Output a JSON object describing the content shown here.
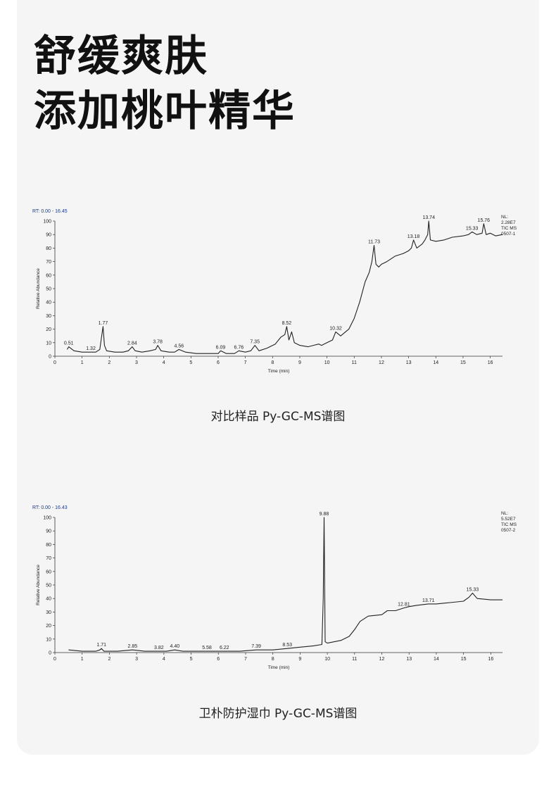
{
  "headline": {
    "line1": "舒缓爽肤",
    "line2": "添加桃叶精华"
  },
  "captions": {
    "chart1": "对比样品 Py-GC-MS谱图",
    "chart2": "卫朴防护湿巾 Py-GC-MS谱图"
  },
  "colors": {
    "trace": "#222222",
    "rt_label": "#1a3a8a",
    "background": "#f5f5f5"
  },
  "chart_data": [
    {
      "type": "line",
      "rt_label": "RT: 0.00 - 16.45",
      "xlabel": "Time (min)",
      "ylabel": "Relative Abundance",
      "xlim": [
        0,
        16.45
      ],
      "ylim": [
        0,
        100
      ],
      "xticks": [
        0,
        1,
        2,
        3,
        4,
        5,
        6,
        7,
        8,
        9,
        10,
        11,
        12,
        13,
        14,
        15,
        16
      ],
      "yticks": [
        0,
        10,
        20,
        30,
        40,
        50,
        60,
        70,
        80,
        90,
        100
      ],
      "info_lines": [
        "NL:",
        "2.28E7",
        "TIC  MS",
        "0507-1"
      ],
      "series": [
        {
          "x": [
            0.45,
            0.51,
            0.7,
            1.0,
            1.32,
            1.5,
            1.65,
            1.72,
            1.77,
            1.82,
            1.9,
            2.2,
            2.5,
            2.7,
            2.84,
            2.95,
            3.2,
            3.5,
            3.7,
            3.78,
            3.9,
            4.2,
            4.4,
            4.56,
            4.8,
            5.2,
            5.6,
            6.0,
            6.09,
            6.3,
            6.6,
            6.76,
            7.0,
            7.2,
            7.35,
            7.5,
            7.8,
            8.1,
            8.3,
            8.45,
            8.52,
            8.6,
            8.7,
            8.8,
            9.0,
            9.3,
            9.5,
            9.7,
            9.8,
            10.0,
            10.2,
            10.32,
            10.5,
            10.8,
            11.0,
            11.2,
            11.4,
            11.55,
            11.65,
            11.73,
            11.8,
            11.9,
            12.0,
            12.2,
            12.5,
            12.8,
            13.0,
            13.1,
            13.18,
            13.3,
            13.5,
            13.6,
            13.7,
            13.74,
            13.8,
            14.0,
            14.3,
            14.6,
            15.0,
            15.2,
            15.33,
            15.5,
            15.7,
            15.76,
            15.85,
            16.0,
            16.2,
            16.45
          ],
          "y": [
            5,
            7,
            4,
            3,
            3,
            3,
            5,
            15,
            22,
            8,
            4,
            3,
            3,
            4,
            7,
            4,
            3,
            4,
            5,
            8,
            4,
            3,
            3,
            5,
            3,
            2,
            2,
            2,
            4,
            2,
            2,
            4,
            3,
            4,
            8,
            4,
            6,
            9,
            14,
            16,
            22,
            12,
            18,
            10,
            8,
            7,
            8,
            9,
            8,
            10,
            12,
            18,
            15,
            20,
            28,
            40,
            55,
            62,
            70,
            82,
            68,
            66,
            68,
            70,
            74,
            76,
            78,
            80,
            86,
            80,
            83,
            86,
            90,
            100,
            86,
            85,
            86,
            88,
            89,
            90,
            92,
            90,
            91,
            98,
            90,
            91,
            89,
            90
          ]
        }
      ],
      "peak_labels": [
        {
          "x": 0.51,
          "y": 7,
          "text": "0.51"
        },
        {
          "x": 1.32,
          "y": 3,
          "text": "1.32"
        },
        {
          "x": 1.77,
          "y": 22,
          "text": "1.77"
        },
        {
          "x": 2.84,
          "y": 7,
          "text": "2.84"
        },
        {
          "x": 3.78,
          "y": 8,
          "text": "3.78"
        },
        {
          "x": 4.56,
          "y": 5,
          "text": "4.56"
        },
        {
          "x": 6.09,
          "y": 4,
          "text": "6.09"
        },
        {
          "x": 6.76,
          "y": 4,
          "text": "6.76"
        },
        {
          "x": 7.35,
          "y": 8,
          "text": "7.35"
        },
        {
          "x": 8.52,
          "y": 22,
          "text": "8.52"
        },
        {
          "x": 10.32,
          "y": 18,
          "text": "10.32"
        },
        {
          "x": 11.73,
          "y": 82,
          "text": "11.73"
        },
        {
          "x": 13.18,
          "y": 86,
          "text": "13.18"
        },
        {
          "x": 13.74,
          "y": 100,
          "text": "13.74"
        },
        {
          "x": 15.33,
          "y": 92,
          "text": "15.33"
        },
        {
          "x": 15.76,
          "y": 98,
          "text": "15.76"
        }
      ]
    },
    {
      "type": "line",
      "rt_label": "RT: 0.00 - 16.43",
      "xlabel": "Time (min)",
      "ylabel": "Relative Abundance",
      "xlim": [
        0,
        16.43
      ],
      "ylim": [
        0,
        100
      ],
      "xticks": [
        0,
        1,
        2,
        3,
        4,
        5,
        6,
        7,
        8,
        9,
        10,
        11,
        12,
        13,
        14,
        15,
        16
      ],
      "yticks": [
        0,
        10,
        20,
        30,
        40,
        50,
        60,
        70,
        80,
        90,
        100
      ],
      "info_lines": [
        "NL:",
        "5.52E7",
        "TIC  MS",
        "0507-2"
      ],
      "series": [
        {
          "x": [
            0.5,
            1.0,
            1.5,
            1.65,
            1.71,
            1.8,
            2.3,
            2.85,
            3.3,
            3.82,
            4.1,
            4.4,
            4.7,
            5.2,
            5.58,
            6.0,
            6.22,
            6.8,
            7.39,
            8.0,
            8.53,
            9.0,
            9.5,
            9.8,
            9.85,
            9.88,
            9.92,
            10.0,
            10.5,
            10.8,
            11.0,
            11.2,
            11.5,
            12.0,
            12.2,
            12.5,
            12.81,
            13.0,
            13.3,
            13.71,
            14.0,
            14.5,
            15.0,
            15.2,
            15.33,
            15.5,
            16.0,
            16.43
          ],
          "y": [
            2,
            1,
            1,
            2,
            3,
            1,
            1,
            2,
            1,
            1,
            1,
            2,
            1,
            1,
            1,
            1,
            1,
            1,
            2,
            2,
            3,
            4,
            5,
            6,
            40,
            100,
            8,
            7,
            9,
            12,
            17,
            23,
            27,
            28,
            31,
            31,
            33,
            34,
            35,
            36,
            36,
            37,
            38,
            41,
            44,
            40,
            39,
            39
          ]
        }
      ],
      "peak_labels": [
        {
          "x": 1.71,
          "y": 3,
          "text": "1.71"
        },
        {
          "x": 2.85,
          "y": 2,
          "text": "2.85"
        },
        {
          "x": 3.82,
          "y": 1,
          "text": "3.82"
        },
        {
          "x": 4.4,
          "y": 2,
          "text": "4.40"
        },
        {
          "x": 5.58,
          "y": 1,
          "text": "5.58"
        },
        {
          "x": 6.22,
          "y": 1,
          "text": "6.22"
        },
        {
          "x": 7.39,
          "y": 2,
          "text": "7.39"
        },
        {
          "x": 8.53,
          "y": 3,
          "text": "8.53"
        },
        {
          "x": 9.88,
          "y": 100,
          "text": "9.88"
        },
        {
          "x": 12.81,
          "y": 33,
          "text": "12.81"
        },
        {
          "x": 13.71,
          "y": 36,
          "text": "13.71"
        },
        {
          "x": 15.33,
          "y": 44,
          "text": "15.33"
        }
      ]
    }
  ]
}
